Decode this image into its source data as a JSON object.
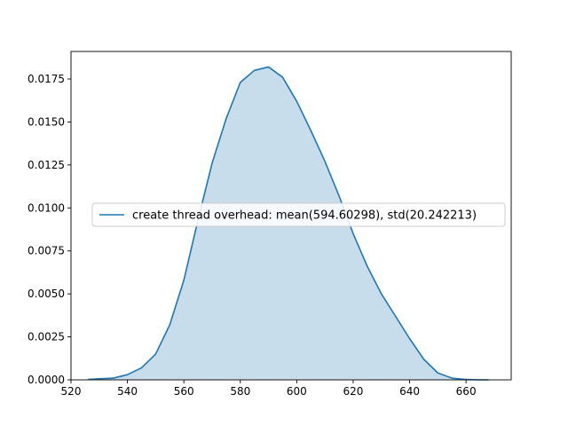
{
  "chart_data": {
    "type": "area",
    "title": "",
    "xlabel": "",
    "ylabel": "",
    "xlim": [
      520,
      676
    ],
    "ylim": [
      0,
      0.0191
    ],
    "x_ticks": [
      520,
      540,
      560,
      580,
      600,
      620,
      640,
      660
    ],
    "x_tick_labels": [
      "520",
      "540",
      "560",
      "580",
      "600",
      "620",
      "640",
      "660"
    ],
    "y_ticks": [
      0,
      0.0025,
      0.005,
      0.0075,
      0.01,
      0.0125,
      0.015,
      0.0175
    ],
    "y_tick_labels": [
      "0.0000",
      "0.0025",
      "0.0050",
      "0.0075",
      "0.0100",
      "0.0125",
      "0.0150",
      "0.0175"
    ],
    "grid": false,
    "legend_position": "center-right",
    "series": [
      {
        "name": "create thread overhead: mean(594.60298), std(20.242213)",
        "color": "#1f77b4",
        "fill_color": "#1f77b4",
        "fill_opacity": 0.25,
        "x": [
          526,
          530,
          535,
          540,
          545,
          550,
          555,
          560,
          565,
          570,
          575,
          580,
          585,
          590,
          595,
          600,
          605,
          610,
          615,
          620,
          625,
          630,
          635,
          640,
          645,
          650,
          655,
          660,
          665,
          668
        ],
        "y": [
          2e-05,
          6e-05,
          0.0001,
          0.0003,
          0.0007,
          0.0015,
          0.0032,
          0.0058,
          0.0093,
          0.0126,
          0.0152,
          0.0173,
          0.018,
          0.0182,
          0.0176,
          0.0162,
          0.0145,
          0.0127,
          0.0107,
          0.0085,
          0.0066,
          0.005,
          0.0037,
          0.0024,
          0.0012,
          0.0004,
          0.0001,
          2e-05,
          0.0,
          0.0
        ]
      }
    ]
  }
}
